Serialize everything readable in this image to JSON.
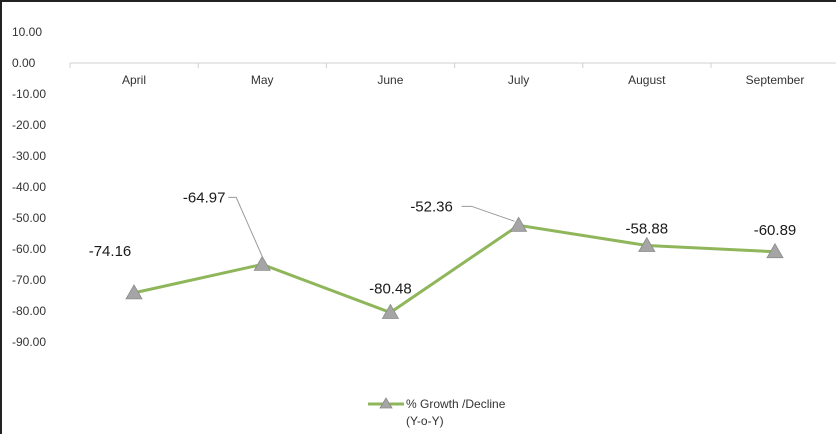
{
  "chart_data": {
    "type": "line",
    "categories": [
      "April",
      "May",
      "June",
      "July",
      "August",
      "September"
    ],
    "y_tick_labels": [
      "10.00",
      "0.00",
      "-10.00",
      "-20.00",
      "-30.00",
      "-40.00",
      "-50.00",
      "-60.00",
      "-70.00",
      "-80.00",
      "-90.00"
    ],
    "ylim": [
      -90,
      10
    ],
    "series": [
      {
        "name": "% Growth /Decline (Y-o-Y)",
        "legend_lines": [
          "% Growth /Decline",
          "(Y-o-Y)"
        ],
        "values": [
          -74.16,
          -64.97,
          -80.48,
          -52.36,
          -58.88,
          -60.89
        ],
        "data_labels": [
          "-74.16",
          "-64.97",
          "-80.48",
          "-52.36",
          "-58.88",
          "-60.89"
        ],
        "color": "#8fb65a",
        "marker_color": "#a5a5a5",
        "marker": "triangle-icon"
      }
    ],
    "legend_position": "bottom",
    "grid": false
  }
}
